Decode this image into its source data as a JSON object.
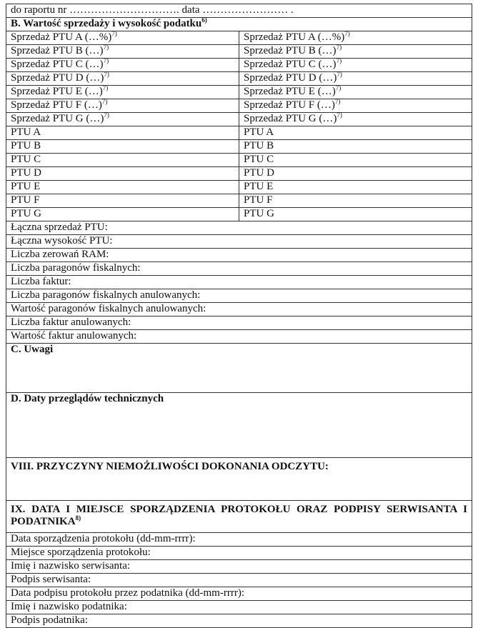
{
  "header_line": "do raportu nr …………………………. data …………………… .",
  "section_b": {
    "title": "B. Wartość sprzedaży i wysokość podatku",
    "footnote": "6)"
  },
  "sales_rows": [
    {
      "label": "Sprzedaż PTU A (…%)",
      "footnote": "7)"
    },
    {
      "label": "Sprzedaż PTU B (…)",
      "footnote": "7)"
    },
    {
      "label": "Sprzedaż PTU C (…)",
      "footnote": "7)"
    },
    {
      "label": "Sprzedaż PTU D (…)",
      "footnote": "7)"
    },
    {
      "label": "Sprzedaż PTU E (…)",
      "footnote": "7)"
    },
    {
      "label": "Sprzedaż PTU F (…)",
      "footnote": "7)"
    },
    {
      "label": "Sprzedaż PTU G (…)",
      "footnote": "7)"
    }
  ],
  "ptu_rows": [
    "PTU A",
    "PTU B",
    "PTU C",
    "PTU D",
    "PTU E",
    "PTU F",
    "PTU G"
  ],
  "summary_rows": [
    "Łączna sprzedaż PTU:",
    "Łączna wysokość PTU:",
    "Liczba zerowań RAM:",
    "Liczba paragonów fiskalnych:",
    "Liczba faktur:",
    "Liczba paragonów fiskalnych anulowanych:",
    "Wartość paragonów fiskalnych anulowanych:",
    "Liczba faktur anulowanych:",
    "Wartość faktur anulowanych:"
  ],
  "section_c": "C. Uwagi",
  "section_d": "D. Daty przeglądów technicznych",
  "section_viii": "VIII. PRZYCZYNY NIEMOŻLIWOŚCI DOKONANIA ODCZYTU:",
  "section_ix": {
    "title": "IX. DATA I MIEJSCE SPORZĄDZENIA PROTOKOŁU ORAZ PODPISY SERWISANTA I PODATNIKA",
    "footnote": "8)"
  },
  "ix_rows": [
    "Data sporządzenia protokołu (dd-mm-rrrr):",
    "Miejsce sporządzenia protokołu:",
    "Imię i nazwisko serwisanta:",
    "Podpis serwisanta:",
    "Data podpisu protokołu przez podatnika (dd-mm-rrrr):",
    "Imię i nazwisko podatnika:",
    "Podpis podatnika:"
  ]
}
